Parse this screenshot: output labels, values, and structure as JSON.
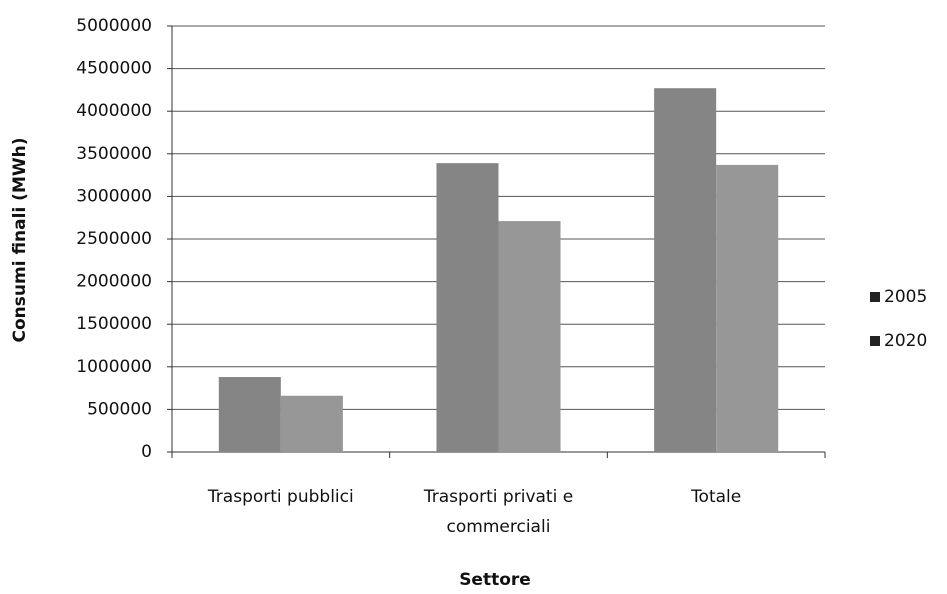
{
  "chart_data": {
    "type": "bar",
    "x_label": "Settore",
    "y_label": "Consumi finali (MWh)",
    "categories": [
      "Trasporti pubblici",
      "Trasporti privati e commerciali",
      "Totale"
    ],
    "series": [
      {
        "name": "2005",
        "color": "#858585",
        "values": [
          880000,
          3390000,
          4270000
        ]
      },
      {
        "name": "2020",
        "color": "#979797",
        "values": [
          660000,
          2710000,
          3370000
        ]
      }
    ],
    "ylim": [
      0,
      5000000
    ],
    "yticks": [
      0,
      500000,
      1000000,
      1500000,
      2000000,
      2500000,
      3000000,
      3500000,
      4000000,
      4500000,
      5000000
    ],
    "grid": true,
    "legend": "right"
  }
}
